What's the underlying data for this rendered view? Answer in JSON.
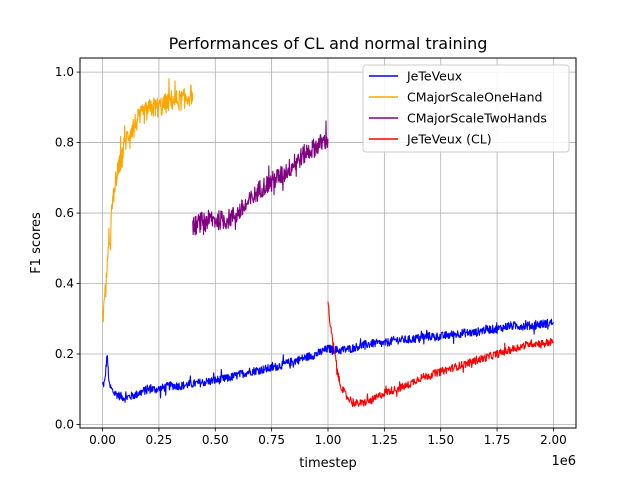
{
  "chart_data": {
    "type": "line",
    "title": "Performances of CL and normal training",
    "xlabel": "timestep",
    "ylabel": "F1 scores",
    "x_offset_label": "1e6",
    "xlim": [
      -0.1,
      2.1
    ],
    "ylim": [
      -0.01,
      1.04
    ],
    "x_ticks": [
      0,
      0.25,
      0.5,
      0.75,
      1.0,
      1.25,
      1.5,
      1.75,
      2.0
    ],
    "x_tick_labels": [
      "0.00",
      "0.25",
      "0.50",
      "0.75",
      "1.00",
      "1.25",
      "1.50",
      "1.75",
      "2.00"
    ],
    "y_ticks": [
      0.0,
      0.2,
      0.4,
      0.6,
      0.8,
      1.0
    ],
    "y_tick_labels": [
      "0.0",
      "0.2",
      "0.4",
      "0.6",
      "0.8",
      "1.0"
    ],
    "grid": true,
    "legend_position": "top-right",
    "series": [
      {
        "name": "JeTeVeux",
        "color": "#0000ff",
        "noise": 0.012,
        "x": [
          0,
          0.01,
          0.02,
          0.03,
          0.05,
          0.08,
          0.1,
          0.15,
          0.2,
          0.25,
          0.3,
          0.35,
          0.4,
          0.45,
          0.5,
          0.55,
          0.6,
          0.65,
          0.7,
          0.75,
          0.8,
          0.85,
          0.9,
          0.95,
          1.0,
          1.05,
          1.1,
          1.15,
          1.2,
          1.25,
          1.3,
          1.35,
          1.4,
          1.45,
          1.5,
          1.55,
          1.6,
          1.65,
          1.7,
          1.75,
          1.8,
          1.85,
          1.9,
          1.95,
          2.0
        ],
        "y": [
          0.11,
          0.12,
          0.2,
          0.11,
          0.09,
          0.08,
          0.075,
          0.085,
          0.1,
          0.1,
          0.11,
          0.11,
          0.115,
          0.12,
          0.125,
          0.13,
          0.14,
          0.15,
          0.155,
          0.16,
          0.17,
          0.18,
          0.19,
          0.2,
          0.215,
          0.21,
          0.215,
          0.225,
          0.23,
          0.23,
          0.24,
          0.24,
          0.245,
          0.25,
          0.25,
          0.255,
          0.26,
          0.26,
          0.27,
          0.27,
          0.28,
          0.28,
          0.28,
          0.285,
          0.29
        ]
      },
      {
        "name": "CMajorScaleOneHand",
        "color": "#ffa500",
        "noise": 0.03,
        "x": [
          0,
          0.01,
          0.02,
          0.03,
          0.04,
          0.05,
          0.06,
          0.07,
          0.08,
          0.1,
          0.12,
          0.15,
          0.18,
          0.2,
          0.22,
          0.25,
          0.28,
          0.3,
          0.33,
          0.35,
          0.38,
          0.4
        ],
        "y": [
          0.3,
          0.35,
          0.45,
          0.5,
          0.6,
          0.65,
          0.7,
          0.72,
          0.75,
          0.8,
          0.83,
          0.86,
          0.88,
          0.89,
          0.9,
          0.9,
          0.91,
          0.92,
          0.92,
          0.92,
          0.93,
          0.94
        ]
      },
      {
        "name": "CMajorScaleTwoHands",
        "color": "#800080",
        "noise": 0.028,
        "x": [
          0.4,
          0.45,
          0.5,
          0.55,
          0.6,
          0.65,
          0.7,
          0.75,
          0.8,
          0.85,
          0.9,
          0.95,
          1.0
        ],
        "y": [
          0.56,
          0.58,
          0.58,
          0.58,
          0.6,
          0.63,
          0.67,
          0.69,
          0.71,
          0.74,
          0.77,
          0.79,
          0.81
        ]
      },
      {
        "name": "JeTeVeux (CL)",
        "color": "#ff0000",
        "noise": 0.011,
        "x": [
          1.0,
          1.01,
          1.02,
          1.03,
          1.05,
          1.08,
          1.1,
          1.12,
          1.15,
          1.2,
          1.25,
          1.3,
          1.35,
          1.4,
          1.45,
          1.5,
          1.55,
          1.6,
          1.65,
          1.7,
          1.75,
          1.8,
          1.85,
          1.9,
          1.95,
          2.0
        ],
        "y": [
          0.35,
          0.28,
          0.24,
          0.2,
          0.12,
          0.08,
          0.07,
          0.06,
          0.06,
          0.07,
          0.09,
          0.1,
          0.11,
          0.13,
          0.14,
          0.15,
          0.16,
          0.17,
          0.18,
          0.19,
          0.2,
          0.21,
          0.22,
          0.23,
          0.23,
          0.235
        ]
      }
    ]
  }
}
